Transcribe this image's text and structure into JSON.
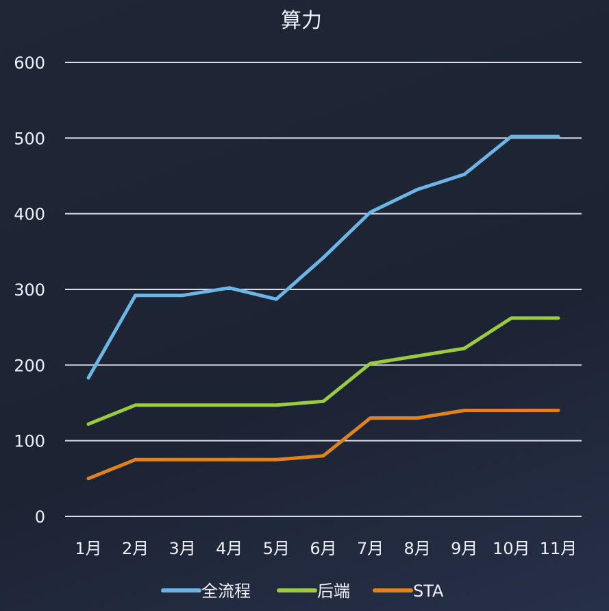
{
  "chart_data": {
    "type": "line",
    "title": "算力",
    "xlabel": "",
    "ylabel": "",
    "categories": [
      "1月",
      "2月",
      "3月",
      "4月",
      "5月",
      "6月",
      "7月",
      "8月",
      "9月",
      "10月",
      "11月"
    ],
    "ylim": [
      0,
      600
    ],
    "yticks": [
      0,
      100,
      200,
      300,
      400,
      500,
      600
    ],
    "grid": true,
    "legend_position": "bottom",
    "series": [
      {
        "name": "全流程",
        "color": "#6db5e4",
        "values": [
          183,
          292,
          292,
          302,
          287,
          342,
          402,
          432,
          452,
          502,
          502
        ]
      },
      {
        "name": "后端",
        "color": "#9bcb3e",
        "values": [
          122,
          147,
          147,
          147,
          147,
          152,
          202,
          212,
          222,
          262,
          262
        ]
      },
      {
        "name": "STA",
        "color": "#e0841a",
        "values": [
          50,
          75,
          75,
          75,
          75,
          80,
          130,
          130,
          140,
          140,
          140
        ]
      }
    ]
  }
}
